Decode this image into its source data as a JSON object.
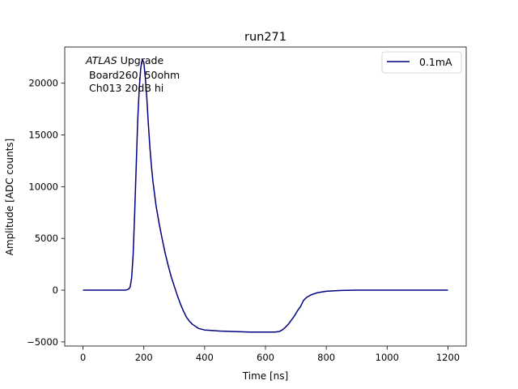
{
  "chart_data": {
    "type": "line",
    "title": "run271",
    "xlabel": "Time [ns]",
    "ylabel": "Amplitude [ADC counts]",
    "xlim": [
      -60,
      1260
    ],
    "ylim": [
      -5400,
      23500
    ],
    "xticks": [
      0,
      200,
      400,
      600,
      800,
      1000,
      1200
    ],
    "yticks": [
      -5000,
      0,
      5000,
      10000,
      15000,
      20000
    ],
    "legend_position": "top-right",
    "annotation": {
      "line1_italic": "ATLAS",
      "line1_rest": " Upgrade",
      "line2": "Board260, 50ohm",
      "line3": "Ch013 20dB hi"
    },
    "series": [
      {
        "name": "0.1mA",
        "color": "#000080",
        "x": [
          0,
          50,
          100,
          140,
          150,
          155,
          160,
          165,
          170,
          175,
          180,
          185,
          190,
          195,
          200,
          205,
          210,
          215,
          220,
          225,
          230,
          240,
          250,
          260,
          270,
          280,
          290,
          300,
          310,
          320,
          330,
          340,
          350,
          360,
          380,
          400,
          450,
          500,
          550,
          600,
          630,
          645,
          655,
          665,
          675,
          685,
          695,
          705,
          715,
          725,
          735,
          750,
          770,
          800,
          850,
          900,
          1000,
          1100,
          1200
        ],
        "y": [
          0,
          0,
          0,
          0,
          100,
          300,
          1200,
          3500,
          7500,
          12000,
          16500,
          19500,
          21500,
          22300,
          22000,
          20500,
          18500,
          16000,
          13800,
          12000,
          10500,
          8200,
          6500,
          5000,
          3600,
          2400,
          1300,
          400,
          -500,
          -1300,
          -2000,
          -2600,
          -3000,
          -3300,
          -3700,
          -3850,
          -3950,
          -4000,
          -4050,
          -4050,
          -4050,
          -4000,
          -3850,
          -3600,
          -3300,
          -2900,
          -2500,
          -2000,
          -1600,
          -1000,
          -700,
          -450,
          -250,
          -100,
          -30,
          0,
          0,
          0,
          0
        ]
      }
    ]
  }
}
